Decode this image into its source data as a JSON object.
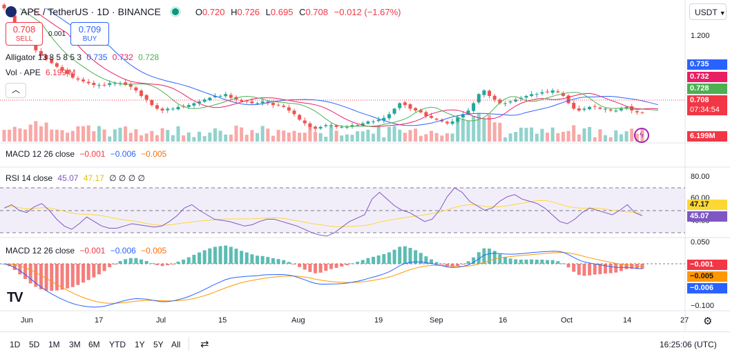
{
  "header": {
    "symbol": "APE / TetherUS · 1D · BINANCE",
    "open_key": "O",
    "open": "0.720",
    "high_key": "H",
    "high": "0.726",
    "low_key": "L",
    "low": "0.695",
    "close_key": "C",
    "close": "0.708",
    "change": "−0.012 (−1.67%)"
  },
  "trade": {
    "sell_price": "0.708",
    "sell_label": "SELL",
    "buy_price": "0.709",
    "buy_label": "BUY",
    "spread": "0.001"
  },
  "legends": {
    "alligator_label": "Alligator 13 8 5 8 5 3",
    "alligator_jaw": "0.735",
    "alligator_teeth": "0.732",
    "alligator_lips": "0.728",
    "vol_label": "Vol · APE",
    "vol_value": "6.199 M",
    "macd1_label": "MACD 12 26 close",
    "macd1_hist": "−0.001",
    "macd1_macd": "−0.006",
    "macd1_signal": "−0.005",
    "rsi_label": "RSI 14 close",
    "rsi_value": "45.07",
    "rsi_ma": "47.17",
    "rsi_extra": "∅ ∅ ∅ ∅",
    "macd2_label": "MACD 12 26 close",
    "macd2_hist": "−0.001",
    "macd2_macd": "−0.006",
    "macd2_signal": "−0.005"
  },
  "currency_select": "USDT",
  "price_axis": {
    "tick_1200": "1.200",
    "badge_jaw": "0.735",
    "badge_teeth": "0.732",
    "badge_lips": "0.728",
    "badge_price": "0.708",
    "badge_countdown": "07:34:54",
    "badge_volume": "6.199M"
  },
  "rsi_axis": {
    "t80": "80.00",
    "t60": "60.00",
    "t40": "40.00",
    "badge_ma": "47.17",
    "badge_rsi": "45.07"
  },
  "macd_axis": {
    "t050": "0.050",
    "tm100": "−0.100",
    "badge_hist": "−0.001",
    "badge_signal": "−0.005",
    "badge_macd": "−0.006"
  },
  "time_axis": [
    "Jun",
    "17",
    "Jul",
    "15",
    "Aug",
    "19",
    "Sep",
    "16",
    "Oct",
    "14",
    "27"
  ],
  "timeframes": [
    "1D",
    "5D",
    "1M",
    "3M",
    "6M",
    "YTD",
    "1Y",
    "5Y",
    "All"
  ],
  "clock": "16:25:06 (UTC)",
  "colors": {
    "up": "#26a69a",
    "down": "#ef5350",
    "jaw": "#2962ff",
    "teeth": "#e91e63",
    "lips": "#4caf50",
    "rsi": "#7e57c2",
    "rsi_ma": "#fdd835",
    "macd": "#2962ff",
    "signal": "#ff9800"
  },
  "chart_data": [
    {
      "type": "candlestick",
      "title": "APE / TetherUS · 1D · BINANCE",
      "ylim": [
        0.55,
        1.25
      ],
      "y_ticks": [
        1.2
      ],
      "x_ticks": [
        "Jun",
        "17",
        "Jul",
        "15",
        "Aug",
        "19",
        "Sep",
        "16",
        "Oct",
        "14",
        "27"
      ],
      "close_path": [
        1.28,
        1.24,
        1.2,
        1.16,
        1.12,
        1.08,
        1.05,
        1.02,
        1.0,
        0.98,
        0.96,
        0.94,
        0.92,
        0.9,
        0.89,
        0.88,
        0.87,
        0.86,
        0.86,
        0.86,
        0.87,
        0.87,
        0.87,
        0.86,
        0.85,
        0.83,
        0.8,
        0.78,
        0.75,
        0.73,
        0.72,
        0.73,
        0.73,
        0.74,
        0.74,
        0.75,
        0.76,
        0.77,
        0.78,
        0.79,
        0.8,
        0.8,
        0.81,
        0.79,
        0.78,
        0.77,
        0.77,
        0.76,
        0.76,
        0.77,
        0.76,
        0.75,
        0.75,
        0.74,
        0.72,
        0.7,
        0.67,
        0.65,
        0.63,
        0.62,
        0.63,
        0.64,
        0.64,
        0.63,
        0.63,
        0.63,
        0.64,
        0.64,
        0.65,
        0.66,
        0.66,
        0.67,
        0.68,
        0.7,
        0.73,
        0.76,
        0.75,
        0.73,
        0.72,
        0.71,
        0.69,
        0.68,
        0.67,
        0.66,
        0.65,
        0.66,
        0.68,
        0.7,
        0.72,
        0.76,
        0.81,
        0.83,
        0.8,
        0.78,
        0.76,
        0.76,
        0.77,
        0.78,
        0.79,
        0.8,
        0.81,
        0.81,
        0.82,
        0.82,
        0.83,
        0.82,
        0.8,
        0.76,
        0.73,
        0.72,
        0.73,
        0.74,
        0.74,
        0.73,
        0.73,
        0.72,
        0.72,
        0.73,
        0.74,
        0.72,
        0.71,
        0.708
      ],
      "series": [
        {
          "name": "Jaw",
          "value": 0.735
        },
        {
          "name": "Teeth",
          "value": 0.732
        },
        {
          "name": "Lips",
          "value": 0.728
        }
      ],
      "last_close": 0.708
    },
    {
      "type": "bar",
      "title": "Vol · APE",
      "last_value": "6.199M"
    },
    {
      "type": "line",
      "title": "RSI 14 close",
      "ylim": [
        20,
        100
      ],
      "y_ticks": [
        80,
        60,
        40
      ],
      "band": [
        30,
        70
      ],
      "rsi_path": [
        52,
        55,
        50,
        48,
        53,
        56,
        50,
        42,
        36,
        33,
        38,
        44,
        40,
        36,
        34,
        34,
        36,
        38,
        37,
        36,
        35,
        36,
        40,
        45,
        52,
        55,
        50,
        46,
        42,
        41,
        40,
        38,
        36,
        37,
        40,
        42,
        42,
        40,
        38,
        36,
        33,
        30,
        28,
        27,
        30,
        35,
        40,
        43,
        46,
        60,
        66,
        60,
        54,
        50,
        48,
        44,
        40,
        42,
        50,
        62,
        70,
        66,
        58,
        54,
        50,
        52,
        58,
        62,
        64,
        60,
        58,
        56,
        52,
        46,
        40,
        38,
        42,
        48,
        52,
        50,
        48,
        46,
        50,
        55,
        48,
        45.07
      ],
      "series": [
        {
          "name": "RSI",
          "last": 45.07
        },
        {
          "name": "RSI MA",
          "last": 47.17
        }
      ]
    },
    {
      "type": "line",
      "title": "MACD 12 26 close",
      "ylim": [
        -0.11,
        0.06
      ],
      "y_ticks": [
        0.05,
        -0.1
      ],
      "series": [
        {
          "name": "MACD",
          "last": -0.006
        },
        {
          "name": "Signal",
          "last": -0.005
        },
        {
          "name": "Histogram",
          "last": -0.001
        }
      ]
    }
  ]
}
